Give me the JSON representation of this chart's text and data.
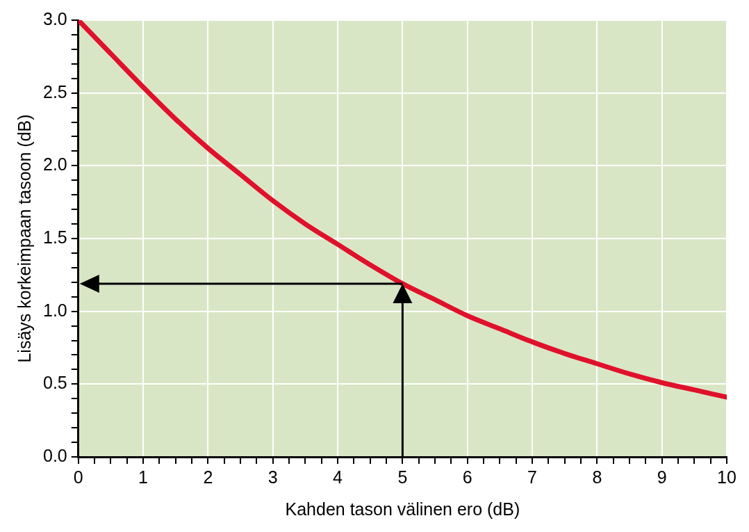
{
  "chart_data": {
    "type": "line",
    "xlabel": "Kahden tason välinen ero (dB)",
    "ylabel": "Lisäys korkeimpaan tasoon (dB)",
    "x": [
      0,
      0.5,
      1,
      1.5,
      2,
      2.5,
      3,
      3.5,
      4,
      4.5,
      5,
      5.5,
      6,
      6.5,
      7,
      7.5,
      8,
      8.5,
      9,
      9.5,
      10
    ],
    "series": [
      {
        "color": "#e0112b",
        "values": [
          3.0,
          2.77,
          2.54,
          2.32,
          2.12,
          1.94,
          1.76,
          1.6,
          1.46,
          1.32,
          1.19,
          1.08,
          0.97,
          0.88,
          0.79,
          0.71,
          0.64,
          0.57,
          0.51,
          0.46,
          0.41
        ]
      }
    ],
    "xlim": [
      0,
      10
    ],
    "xticks": [
      0,
      {
        "value": 0.25,
        "label": null
      },
      {
        "value": 0.5,
        "label": null
      },
      {
        "value": 0.75,
        "label": null
      },
      1,
      {
        "value": 1.25,
        "label": null
      },
      {
        "value": 1.5,
        "label": null
      },
      {
        "value": 1.75,
        "label": null
      },
      2,
      {
        "value": 2.25,
        "label": null
      },
      {
        "value": 2.5,
        "label": null
      },
      {
        "value": 2.75,
        "label": null
      },
      3,
      {
        "value": 3.25,
        "label": null
      },
      {
        "value": 3.5,
        "label": null
      },
      {
        "value": 3.75,
        "label": null
      },
      4,
      {
        "value": 4.25,
        "label": null
      },
      {
        "value": 4.5,
        "label": null
      },
      {
        "value": 4.75,
        "label": null
      },
      5,
      {
        "value": 5.25,
        "label": null
      },
      {
        "value": 5.5,
        "label": null
      },
      {
        "value": 5.75,
        "label": null
      },
      6,
      {
        "value": 6.25,
        "label": null
      },
      {
        "value": 6.5,
        "label": null
      },
      {
        "value": 6.75,
        "label": null
      },
      7,
      {
        "value": 7.25,
        "label": null
      },
      {
        "value": 7.5,
        "label": null
      },
      {
        "value": 7.75,
        "label": null
      },
      8,
      {
        "value": 8.25,
        "label": null
      },
      {
        "value": 8.5,
        "label": null
      },
      {
        "value": 8.75,
        "label": null
      },
      9,
      {
        "value": 9.25,
        "label": null
      },
      {
        "value": 9.5,
        "label": null
      },
      {
        "value": 9.75,
        "label": null
      },
      10
    ],
    "ylim": [
      0,
      3
    ],
    "yticks": [
      {
        "value": 0,
        "label": "0.0"
      },
      {
        "value": 0.1,
        "label": null
      },
      {
        "value": 0.2,
        "label": null
      },
      {
        "value": 0.3,
        "label": null
      },
      {
        "value": 0.4,
        "label": null
      },
      0.5,
      {
        "value": 0.6,
        "label": null
      },
      {
        "value": 0.7,
        "label": null
      },
      {
        "value": 0.8,
        "label": null
      },
      {
        "value": 0.9,
        "label": null
      },
      {
        "value": 1,
        "label": "1.0"
      },
      {
        "value": 1.1,
        "label": null
      },
      {
        "value": 1.2,
        "label": null
      },
      {
        "value": 1.3,
        "label": null
      },
      {
        "value": 1.4,
        "label": null
      },
      1.5,
      {
        "value": 1.6,
        "label": null
      },
      {
        "value": 1.7,
        "label": null
      },
      {
        "value": 1.8,
        "label": null
      },
      {
        "value": 1.9,
        "label": null
      },
      {
        "value": 2,
        "label": "2.0"
      },
      {
        "value": 2.1,
        "label": null
      },
      {
        "value": 2.2,
        "label": null
      },
      {
        "value": 2.3,
        "label": null
      },
      {
        "value": 2.4,
        "label": null
      },
      2.5,
      {
        "value": 2.6,
        "label": null
      },
      {
        "value": 2.7,
        "label": null
      },
      {
        "value": 2.8,
        "label": null
      },
      {
        "value": 2.9,
        "label": null
      },
      {
        "value": 3,
        "label": "3.0"
      }
    ],
    "grid": true,
    "legend": false,
    "marker": "none",
    "line_style": "solid"
  }
}
